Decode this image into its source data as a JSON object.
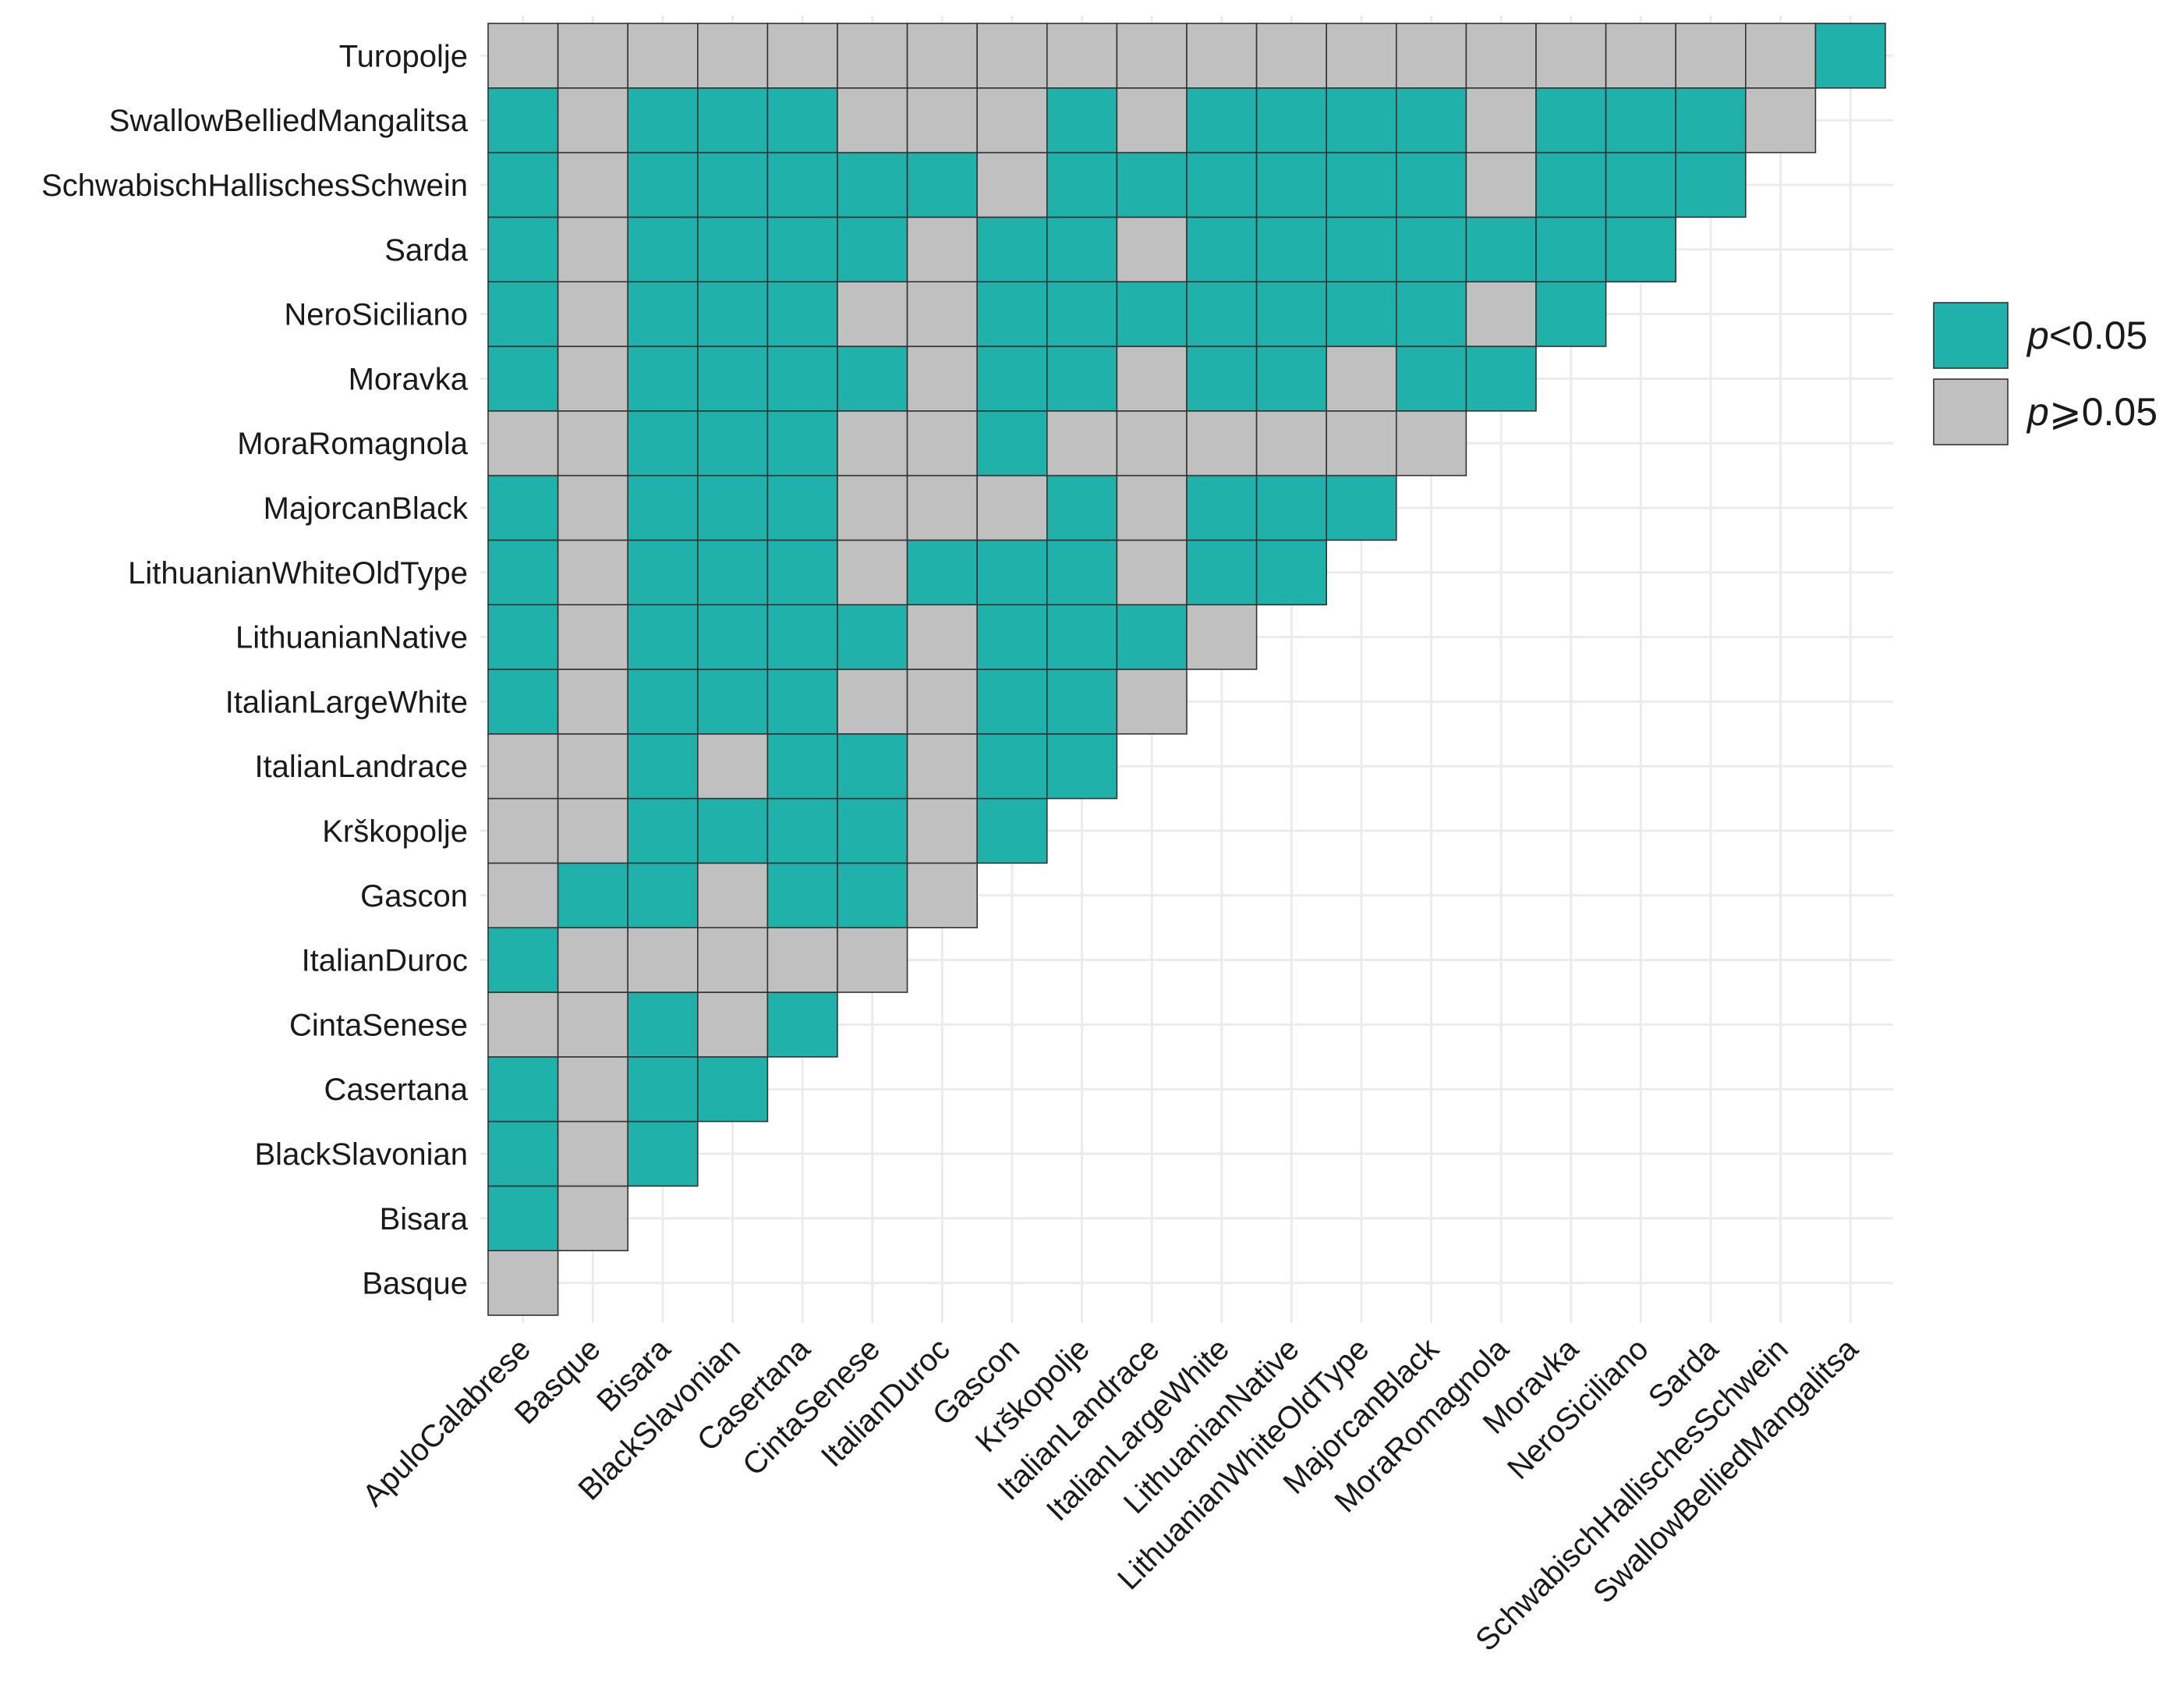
{
  "chart_data": {
    "type": "heatmap",
    "title": "",
    "xlabel": "",
    "ylabel": "",
    "x_categories": [
      "ApuloCalabrese",
      "Basque",
      "Bisara",
      "BlackSlavonian",
      "Casertana",
      "CintaSenese",
      "ItalianDuroc",
      "Gascon",
      "Krškopolje",
      "ItalianLandrace",
      "ItalianLargeWhite",
      "LithuanianNative",
      "LithuanianWhiteOldType",
      "MajorcanBlack",
      "MoraRomagnola",
      "Moravka",
      "NeroSiciliano",
      "Sarda",
      "SchwabischHallischesSchwein",
      "SwallowBelliedMangalitsa"
    ],
    "y_categories": [
      "Basque",
      "Bisara",
      "BlackSlavonian",
      "Casertana",
      "CintaSenese",
      "ItalianDuroc",
      "Gascon",
      "Krškopolje",
      "ItalianLandrace",
      "ItalianLargeWhite",
      "LithuanianNative",
      "LithuanianWhiteOldType",
      "MajorcanBlack",
      "MoraRomagnola",
      "Moravka",
      "NeroSiciliano",
      "Sarda",
      "SchwabischHallischesSchwein",
      "SwallowBelliedMangalitsa",
      "Turopolje"
    ],
    "significant_matrix": [
      [
        0
      ],
      [
        1,
        0
      ],
      [
        1,
        0,
        1
      ],
      [
        1,
        0,
        1,
        1
      ],
      [
        0,
        0,
        1,
        0,
        1
      ],
      [
        1,
        0,
        0,
        0,
        0,
        0
      ],
      [
        0,
        1,
        1,
        0,
        1,
        1,
        0
      ],
      [
        0,
        0,
        1,
        1,
        1,
        1,
        0,
        1
      ],
      [
        0,
        0,
        1,
        0,
        1,
        1,
        0,
        1,
        1
      ],
      [
        1,
        0,
        1,
        1,
        1,
        0,
        0,
        1,
        1,
        0
      ],
      [
        1,
        0,
        1,
        1,
        1,
        1,
        0,
        1,
        1,
        1,
        0
      ],
      [
        1,
        0,
        1,
        1,
        1,
        0,
        1,
        1,
        1,
        0,
        1,
        1
      ],
      [
        1,
        0,
        1,
        1,
        1,
        0,
        0,
        0,
        1,
        0,
        1,
        1,
        1
      ],
      [
        0,
        0,
        1,
        1,
        1,
        0,
        0,
        1,
        0,
        0,
        0,
        0,
        0,
        0
      ],
      [
        1,
        0,
        1,
        1,
        1,
        1,
        0,
        1,
        1,
        0,
        1,
        1,
        0,
        1,
        1
      ],
      [
        1,
        0,
        1,
        1,
        1,
        0,
        0,
        1,
        1,
        1,
        1,
        1,
        1,
        1,
        0,
        1
      ],
      [
        1,
        0,
        1,
        1,
        1,
        1,
        0,
        1,
        1,
        0,
        1,
        1,
        1,
        1,
        1,
        1,
        1
      ],
      [
        1,
        0,
        1,
        1,
        1,
        1,
        1,
        0,
        1,
        1,
        1,
        1,
        1,
        1,
        0,
        1,
        1,
        1
      ],
      [
        1,
        0,
        1,
        1,
        1,
        0,
        0,
        0,
        1,
        0,
        1,
        1,
        1,
        1,
        0,
        1,
        1,
        1,
        0
      ],
      [
        0,
        0,
        0,
        0,
        0,
        0,
        0,
        0,
        0,
        0,
        0,
        0,
        0,
        0,
        0,
        0,
        0,
        0,
        0,
        1
      ]
    ],
    "legend": [
      {
        "key": "significant",
        "italic": "p",
        "rest": "<0.05",
        "color": "#20b2aa"
      },
      {
        "key": "not_significant",
        "italic": "p",
        "rest": "⩾0.05",
        "color": "#c0c0c0"
      }
    ],
    "legend_position": "right",
    "grid": true
  }
}
